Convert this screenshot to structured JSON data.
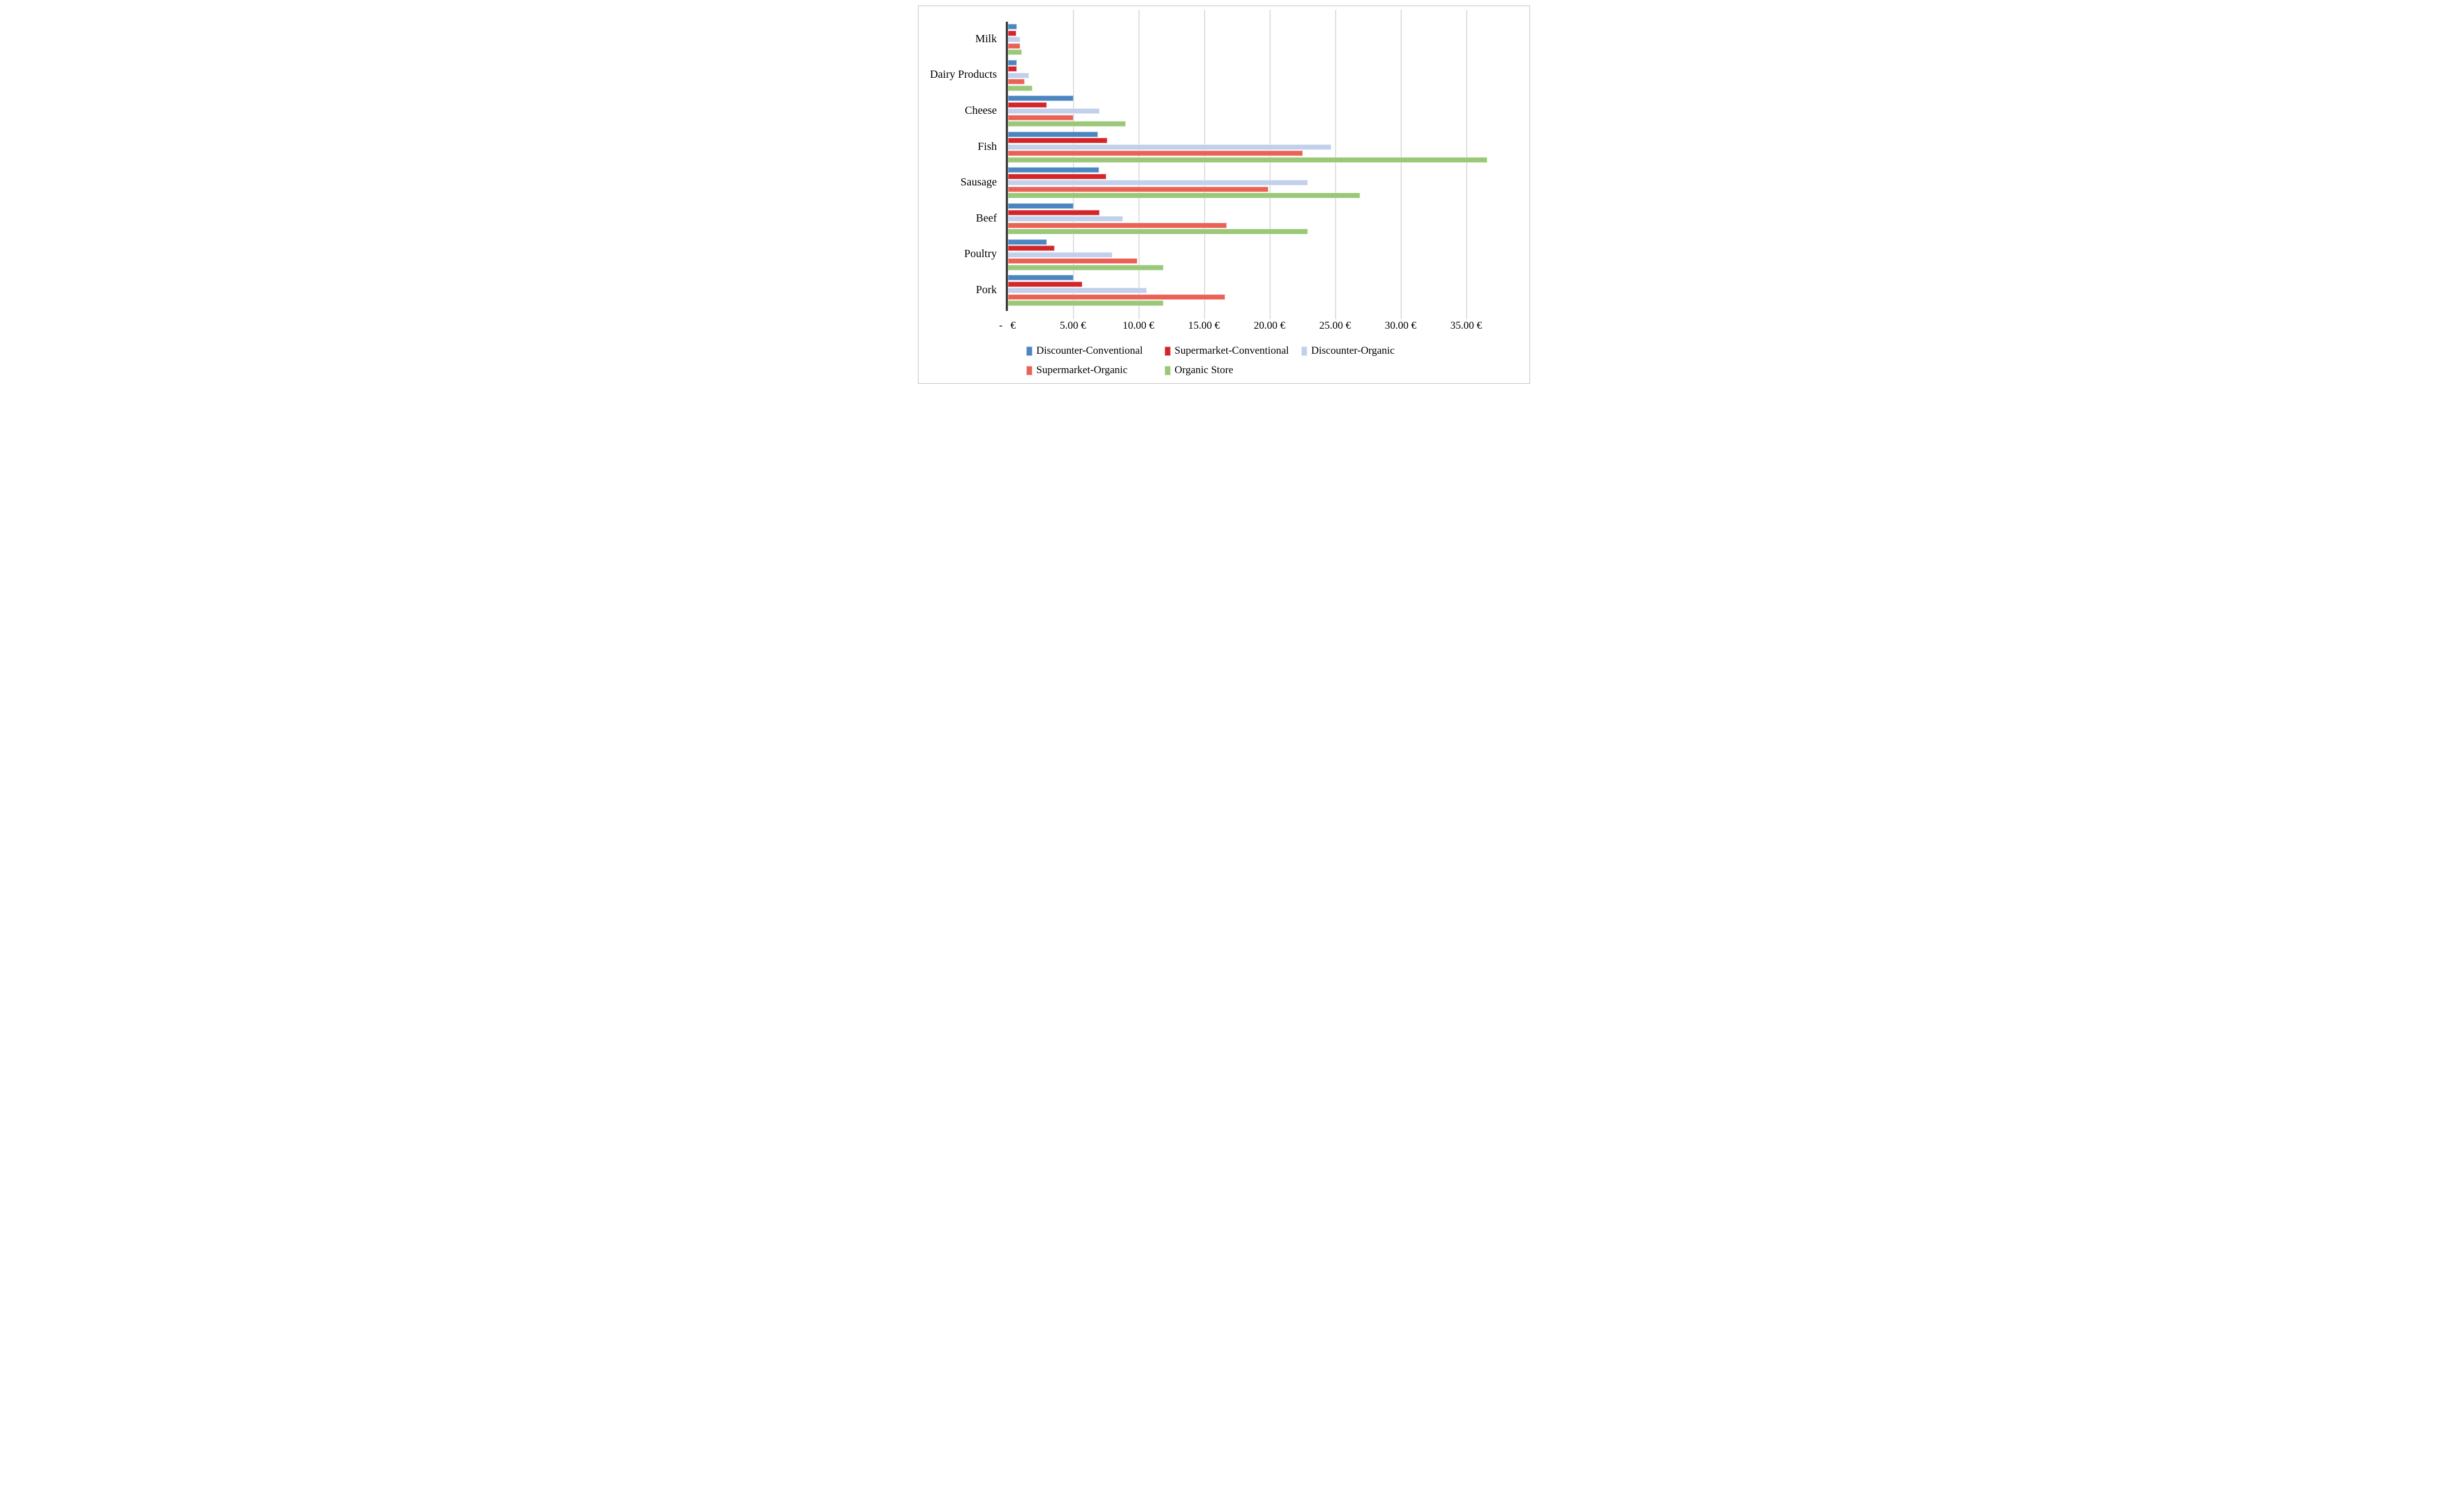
{
  "chart_data": {
    "type": "bar",
    "orientation": "horizontal",
    "title": "",
    "xlabel": "",
    "ylabel": "",
    "categories": [
      "Milk",
      "Dairy Products",
      "Cheese",
      "Fish",
      "Sausage",
      "Beef",
      "Poultry",
      "Pork"
    ],
    "series": [
      {
        "name": "Discounter-Conventional",
        "color": "#4c86c2",
        "border_color": "#a9c6e3",
        "values": [
          0.68,
          0.71,
          5.0,
          6.9,
          6.95,
          5.0,
          3.0,
          5.0
        ]
      },
      {
        "name": "Supermarket-Conventional",
        "color": "#d2262a",
        "border_color": "#f0acab",
        "values": [
          0.66,
          0.69,
          3.0,
          7.6,
          7.5,
          7.0,
          3.6,
          5.7
        ]
      },
      {
        "name": "Discounter-Organic",
        "color": "#c2d0eb",
        "border_color": "#e5ebf7",
        "values": [
          0.96,
          1.63,
          7.0,
          24.7,
          22.9,
          8.8,
          8.0,
          10.6
        ]
      },
      {
        "name": "Supermarket-Organic",
        "color": "#ea6156",
        "border_color": "#f7c3be",
        "values": [
          0.95,
          1.31,
          5.0,
          22.5,
          19.9,
          16.7,
          9.9,
          16.6
        ]
      },
      {
        "name": "Organic Store",
        "color": "#9ac878",
        "border_color": "#d0e5bd",
        "values": [
          1.08,
          1.9,
          9.0,
          36.6,
          26.9,
          22.9,
          11.9,
          11.9
        ]
      }
    ],
    "x_axis": {
      "tick_values": [
        0,
        5,
        10,
        15,
        20,
        25,
        30,
        35
      ],
      "tick_labels": [
        "-   €",
        "5.00 €",
        "10.00 €",
        "15.00 €",
        "20.00 €",
        "25.00 €",
        "30.00 €",
        "35.00 €"
      ],
      "min": 0,
      "max": 39.8,
      "currency": "EUR"
    },
    "grid": true,
    "legend": {
      "position": "bottom",
      "rows": [
        [
          0,
          1,
          2
        ],
        [
          3,
          4
        ]
      ]
    }
  },
  "colors": {
    "background": "#ffffff",
    "frame_border": "#bdbdbd",
    "gridline": "#dcdcdc",
    "axis_line": "#3d3d3d",
    "text": "#000000"
  }
}
